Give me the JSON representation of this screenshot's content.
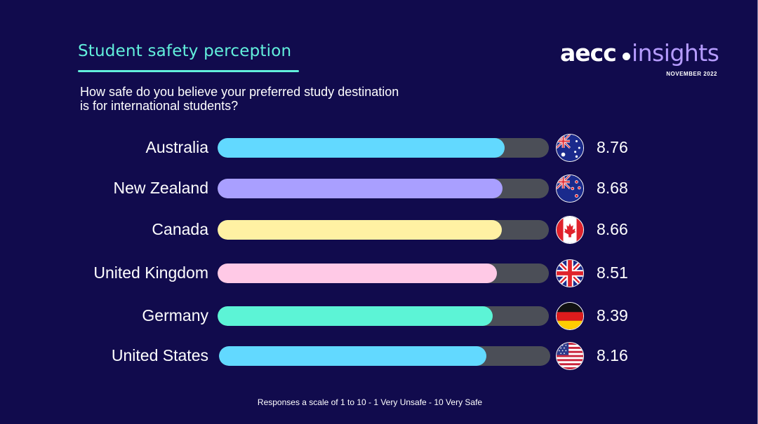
{
  "header": {
    "title": "Student safety perception",
    "question": "How safe do you believe your preferred study destination is for international students?"
  },
  "logo": {
    "brand": "aecc",
    "product": "insights",
    "date": "NOVEMBER 2022"
  },
  "footnote": "Responses a scale of 1 to 10 - 1 Very Unsafe - 10 Very Safe",
  "chart_data": {
    "type": "bar",
    "orientation": "horizontal",
    "title": "Student safety perception",
    "subtitle": "How safe do you believe your preferred study destination is for international students?",
    "categories": [
      "Australia",
      "New Zealand",
      "Canada",
      "United Kingdom",
      "Germany",
      "United States"
    ],
    "values": [
      8.76,
      8.68,
      8.66,
      8.51,
      8.39,
      8.16
    ],
    "value_labels": [
      "8.76",
      "8.68",
      "8.66",
      "8.51",
      "8.39",
      "8.16"
    ],
    "xlim": [
      0,
      10
    ],
    "grid": false,
    "legend": "none",
    "bar_colors": [
      "#62d9ff",
      "#a99fff",
      "#fff1a3",
      "#ffc9e6",
      "#5cf4d6",
      "#62d9ff"
    ],
    "track_color": "#4b4e57",
    "flags": [
      "australia-flag",
      "new-zealand-flag",
      "canada-flag",
      "united-kingdom-flag",
      "germany-flag",
      "united-states-flag"
    ]
  },
  "colors": {
    "background": "#110b4d",
    "accent": "#62f0dc",
    "logo_insights": "#b69cff"
  }
}
